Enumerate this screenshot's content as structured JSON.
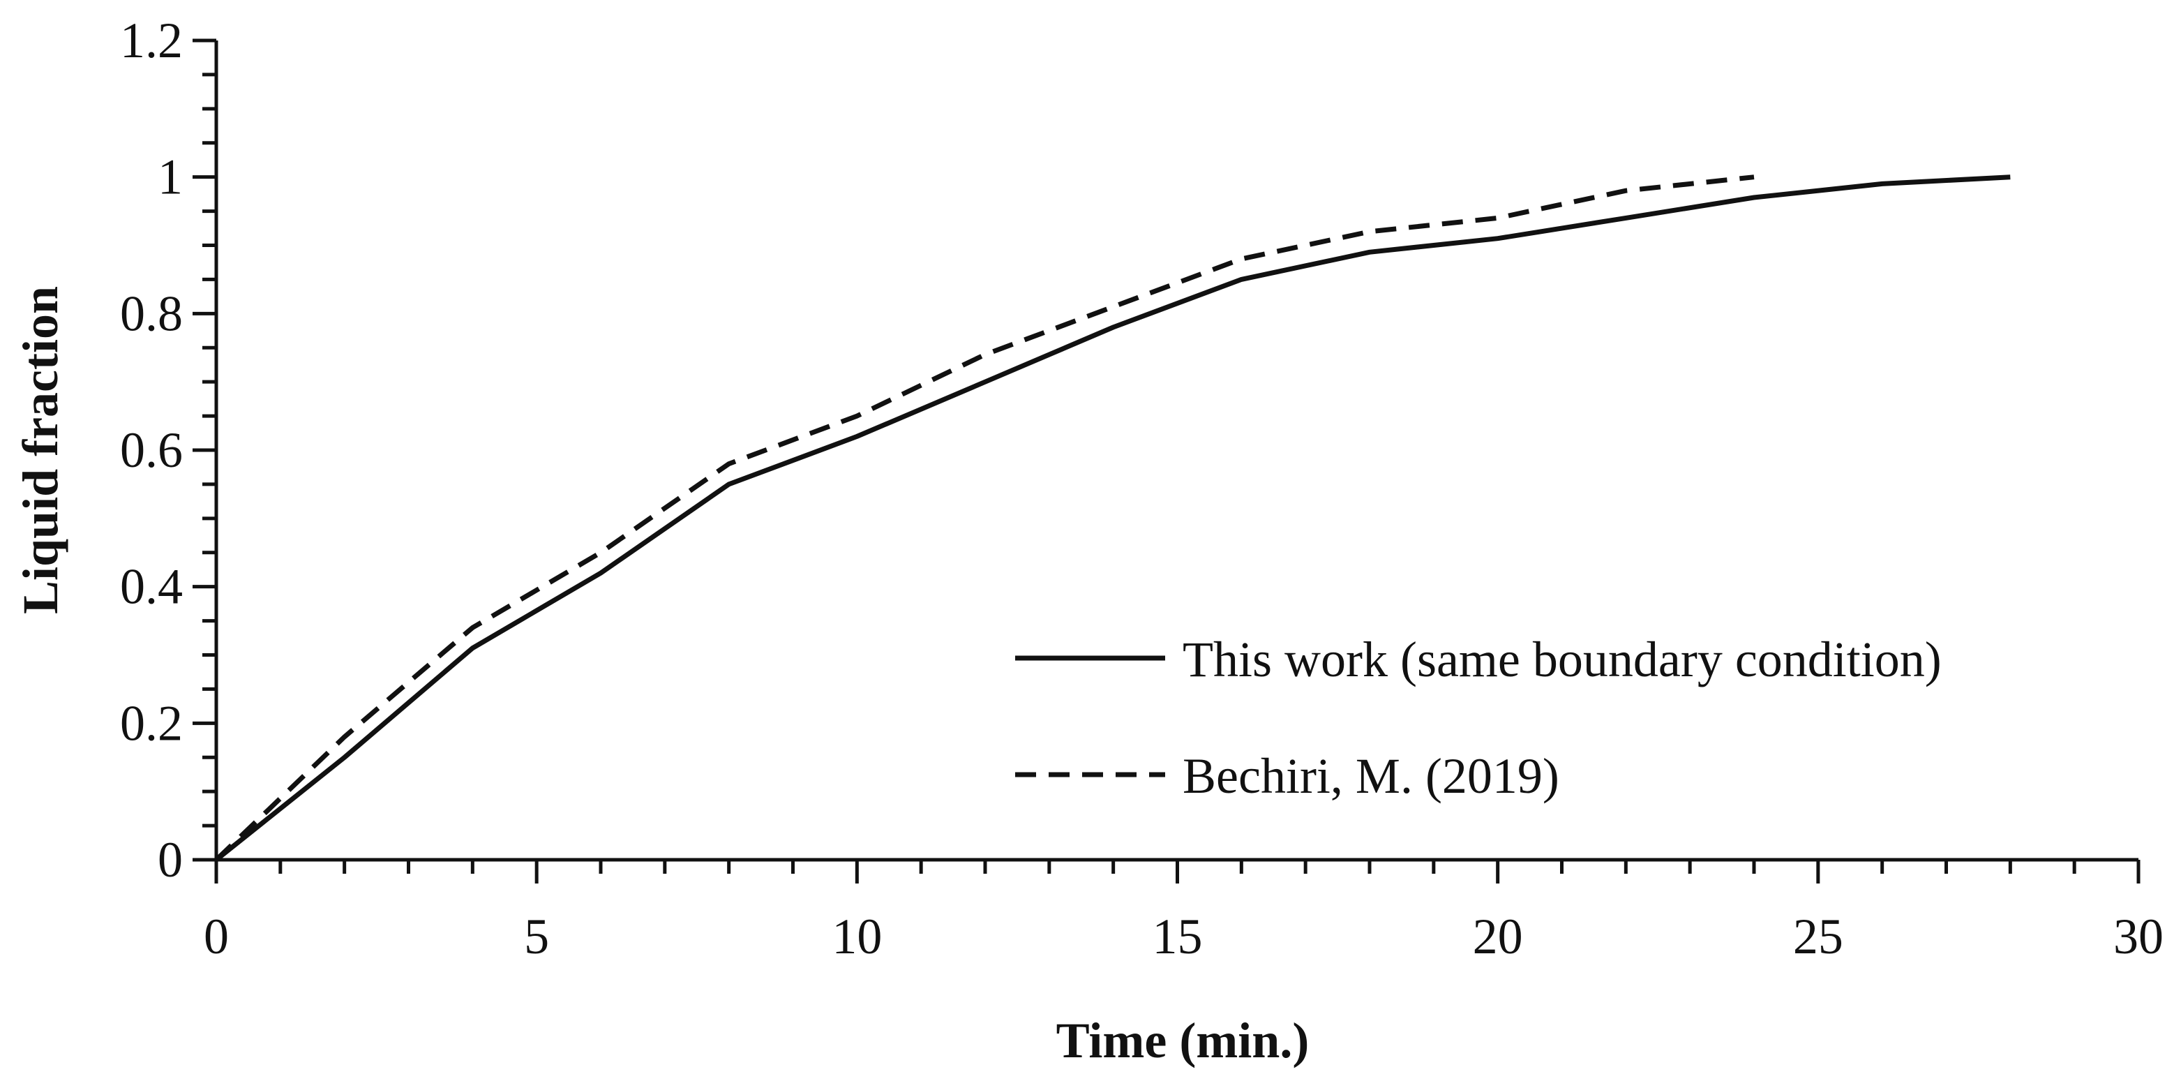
{
  "chart_data": {
    "type": "line",
    "title": "",
    "xlabel": "Time (min.)",
    "ylabel": "Liquid fraction",
    "xlim": [
      0,
      30
    ],
    "ylim": [
      0,
      1.2
    ],
    "x_major_ticks": [
      0,
      5,
      10,
      15,
      20,
      25,
      30
    ],
    "x_tick_labels": [
      "0",
      "5",
      "10",
      "15",
      "20",
      "25",
      "30"
    ],
    "x_minor_step": 1,
    "y_major_ticks": [
      0,
      0.2,
      0.4,
      0.6,
      0.8,
      1,
      1.2
    ],
    "y_tick_labels": [
      "0",
      "0.2",
      "0.4",
      "0.6",
      "0.8",
      "1",
      "1.2"
    ],
    "y_minor_step": 0.05,
    "grid": false,
    "legend_position": "bottom-right",
    "series": [
      {
        "name": "This work (same boundary condition)",
        "style": "solid",
        "color": "#111111",
        "x": [
          0,
          2,
          4,
          6,
          8,
          10,
          12,
          14,
          16,
          18,
          20,
          22,
          24,
          26,
          28
        ],
        "y": [
          0,
          0.15,
          0.31,
          0.42,
          0.55,
          0.62,
          0.7,
          0.78,
          0.85,
          0.89,
          0.91,
          0.94,
          0.97,
          0.99,
          1.0
        ]
      },
      {
        "name": "Bechiri, M. (2019)",
        "style": "dashed",
        "color": "#111111",
        "x": [
          0,
          2,
          4,
          6,
          8,
          10,
          12,
          14,
          16,
          18,
          20,
          22,
          24
        ],
        "y": [
          0,
          0.18,
          0.34,
          0.45,
          0.58,
          0.65,
          0.74,
          0.81,
          0.88,
          0.92,
          0.94,
          0.98,
          1.0
        ]
      }
    ]
  }
}
